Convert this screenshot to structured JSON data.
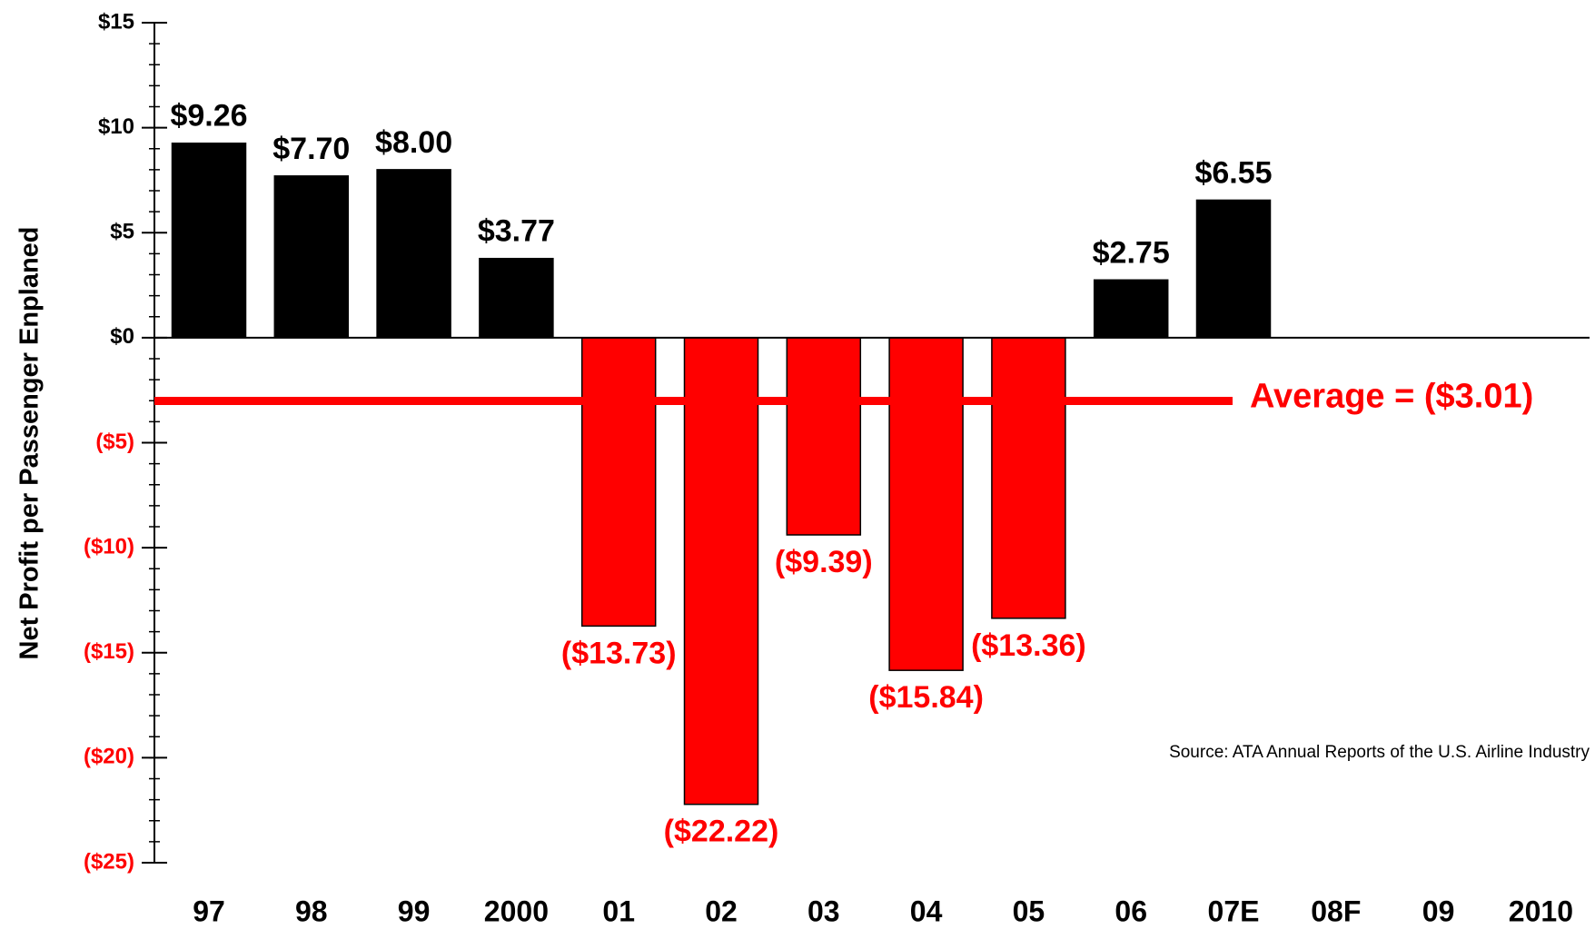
{
  "chart_data": {
    "type": "bar",
    "y_label": "Net Profit per Passenger Enplaned",
    "categories": [
      "97",
      "98",
      "99",
      "2000",
      "01",
      "02",
      "03",
      "04",
      "05",
      "06",
      "07E",
      "08F",
      "09",
      "2010"
    ],
    "values": [
      9.26,
      7.7,
      8.0,
      3.77,
      -13.73,
      -22.22,
      -9.39,
      -15.84,
      -13.36,
      2.75,
      6.55,
      null,
      null,
      null
    ],
    "value_labels": [
      "$9.26",
      "$7.70",
      "$8.00",
      "$3.77",
      "($13.73)",
      "($22.22)",
      "($9.39)",
      "($15.84)",
      "($13.36)",
      "$2.75",
      "$6.55",
      null,
      null,
      null
    ],
    "colors": {
      "positive": "#000000",
      "negative": "#ff0000"
    },
    "ylim": [
      -25,
      15
    ],
    "yticks": [
      {
        "value": 15,
        "label": "$15"
      },
      {
        "value": 10,
        "label": "$10"
      },
      {
        "value": 5,
        "label": "$5"
      },
      {
        "value": 0,
        "label": "$0"
      },
      {
        "value": -5,
        "label": "($5)"
      },
      {
        "value": -10,
        "label": "($10)"
      },
      {
        "value": -15,
        "label": "($15)"
      },
      {
        "value": -20,
        "label": "($20)"
      },
      {
        "value": -25,
        "label": "($25)"
      }
    ],
    "minor_tick_step": 1,
    "average": {
      "value": -3.01,
      "label": "Average = ($3.01)"
    },
    "source": "Source: ATA Annual Reports of the U.S. Airline Industry"
  }
}
